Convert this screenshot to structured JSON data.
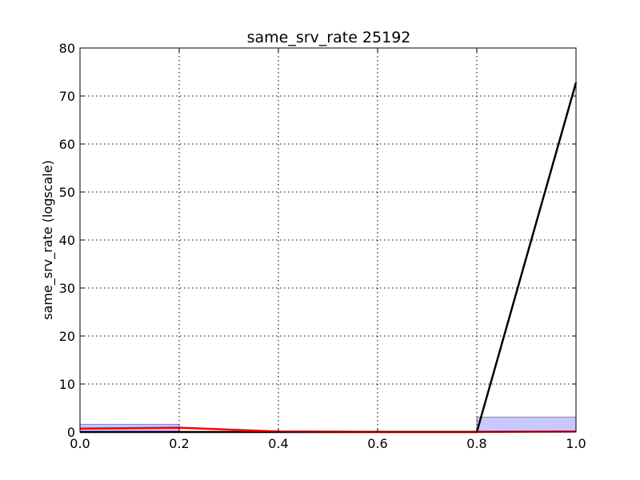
{
  "chart_data": {
    "type": "line",
    "title": "same_srv_rate 25192",
    "xlabel": "",
    "ylabel": "same_srv_rate (logscale)",
    "xlim": [
      0.0,
      1.0
    ],
    "ylim": [
      0,
      80
    ],
    "xticks": [
      "0.0",
      "0.2",
      "0.4",
      "0.6",
      "0.8",
      "1.0"
    ],
    "yticks": [
      "0",
      "10",
      "20",
      "30",
      "40",
      "50",
      "60",
      "70",
      "80"
    ],
    "grid": true,
    "x": [
      0.0,
      0.2,
      0.4,
      0.6,
      0.8,
      1.0
    ],
    "series": [
      {
        "color": "#000000",
        "values": [
          0,
          0,
          0,
          0,
          0,
          72.8
        ]
      },
      {
        "color": "#ff0000",
        "values": [
          0.7,
          0.9,
          0.1,
          0.05,
          0.05,
          0.1
        ]
      }
    ],
    "bars": [
      {
        "x0": 0.0,
        "x1": 0.2,
        "value": 1.6,
        "color": "#c8c8ff"
      },
      {
        "x0": 0.8,
        "x1": 1.0,
        "value": 3.1,
        "color": "#c8c8ff"
      }
    ]
  }
}
